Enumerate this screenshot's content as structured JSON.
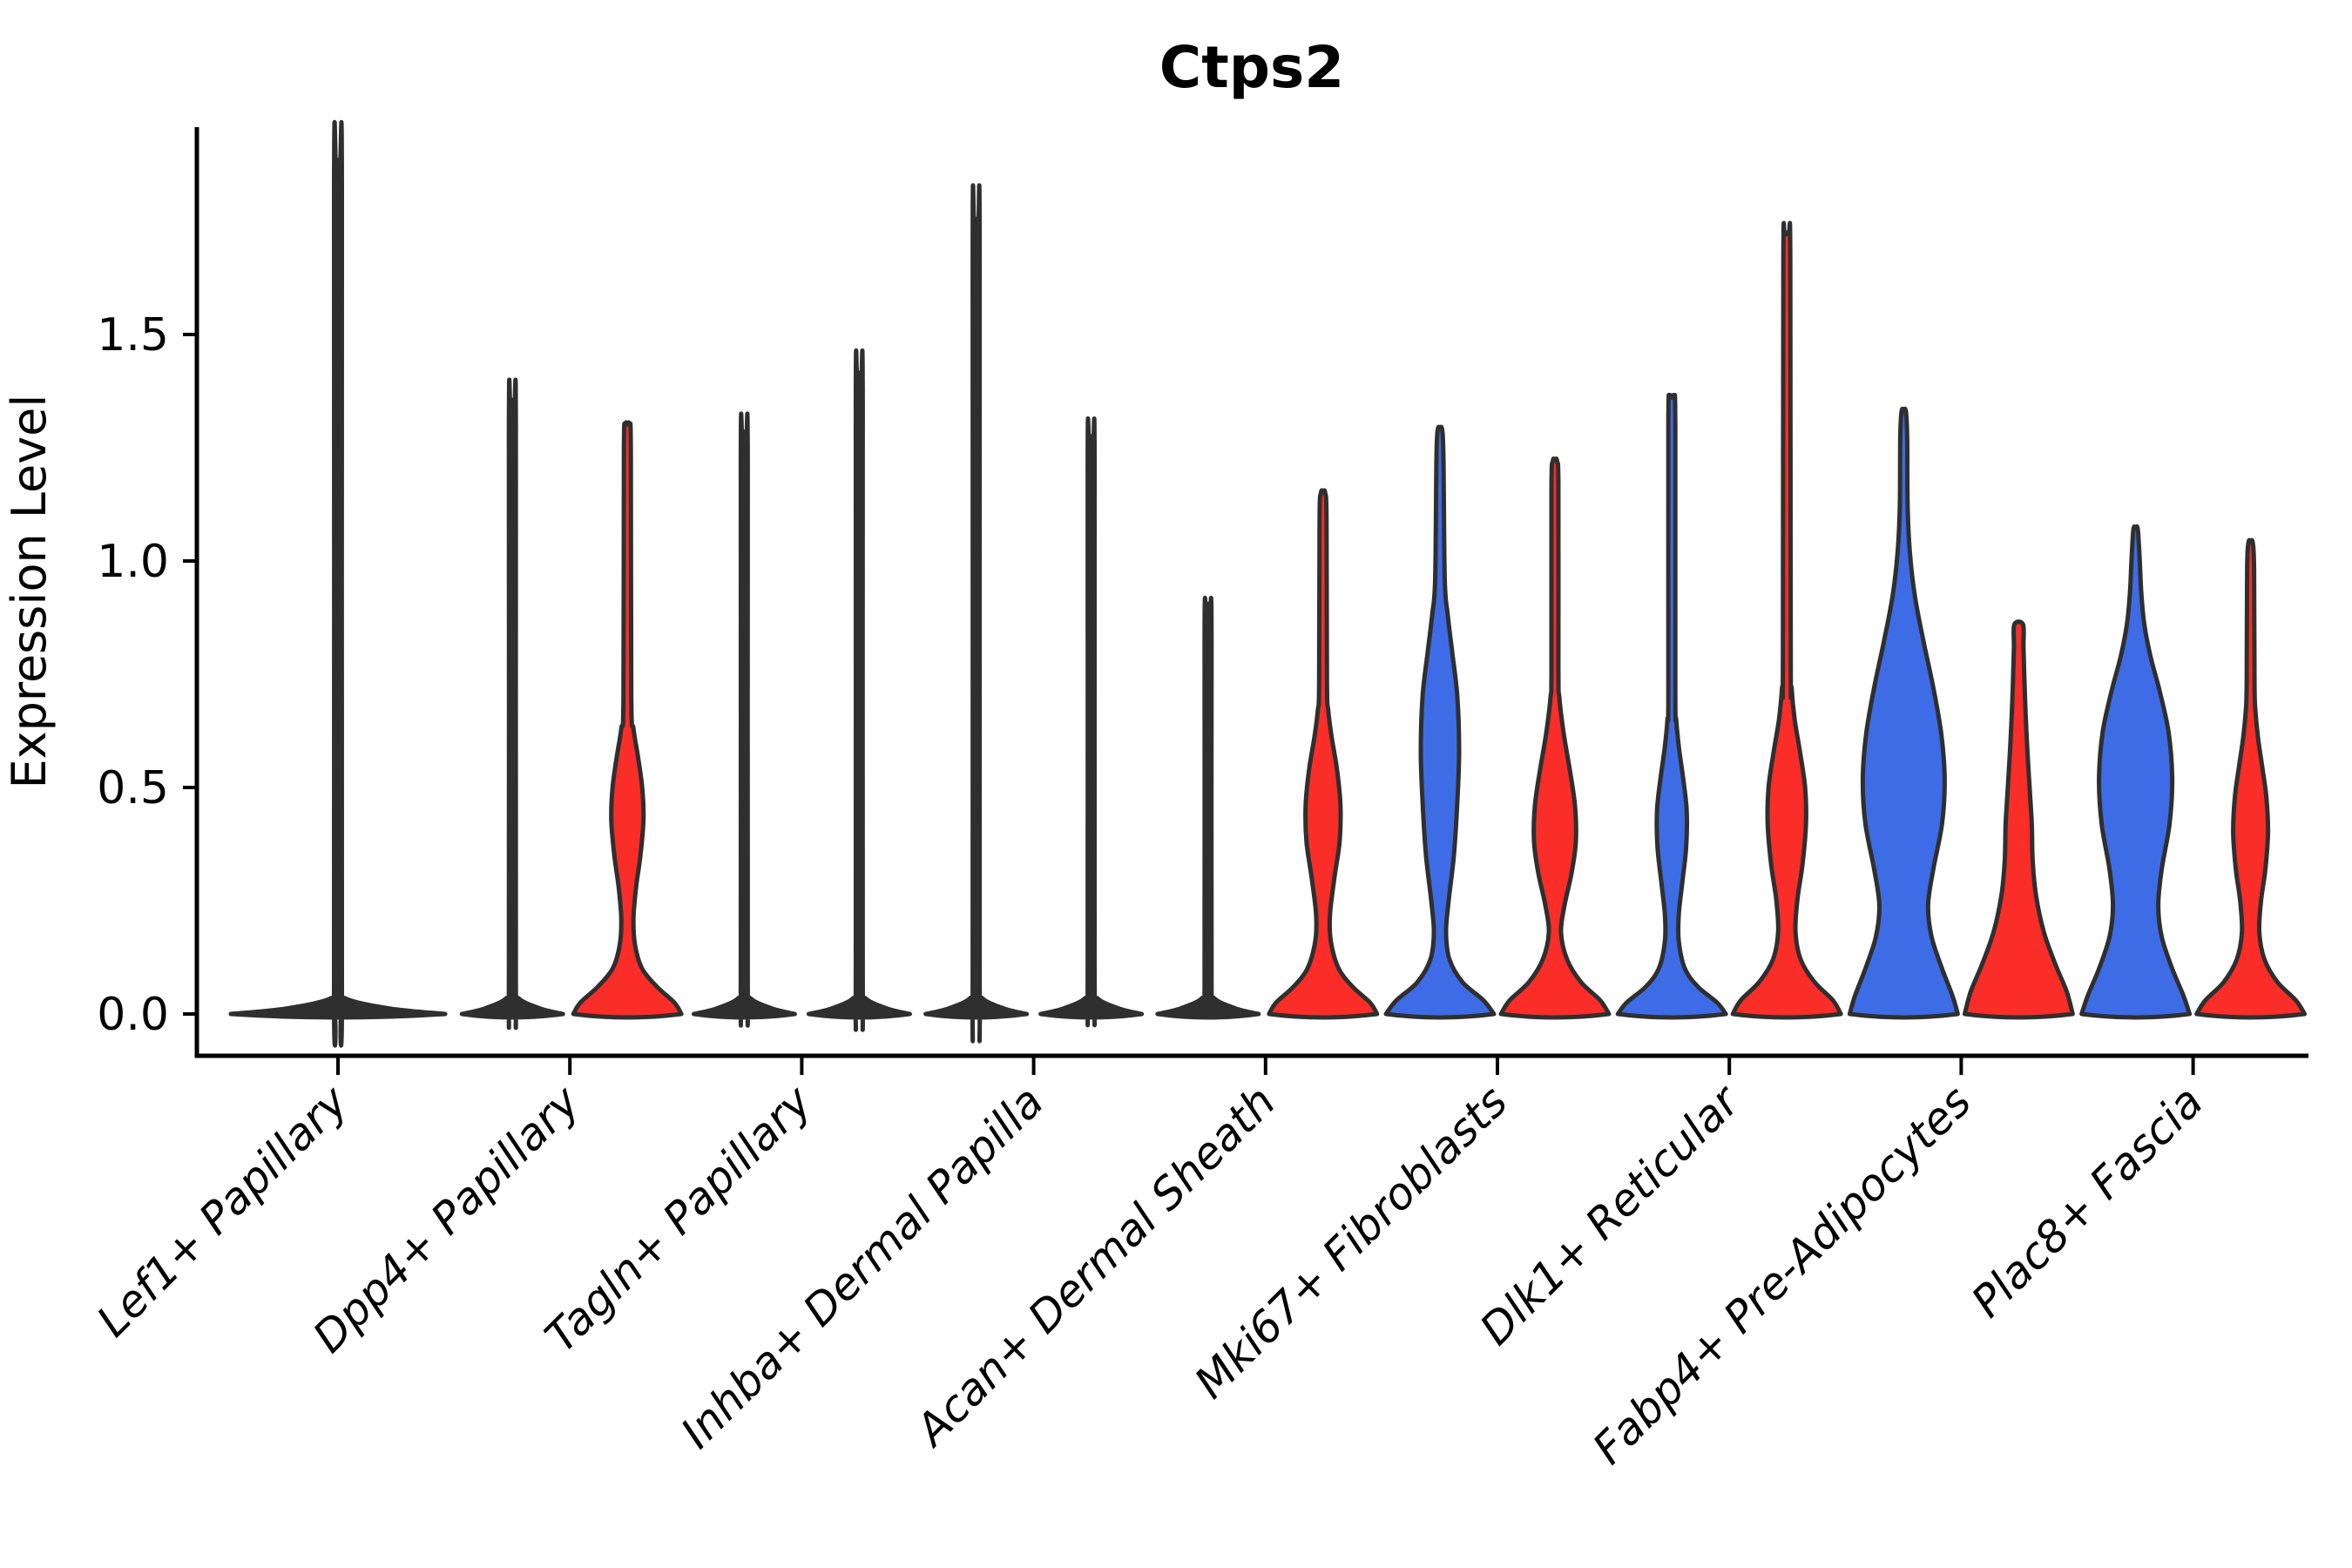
{
  "window": {
    "background": "#ffffff"
  },
  "chart_data": {
    "type": "violin",
    "title": "Ctps2",
    "ylabel": "Expression Level",
    "xlabel": "",
    "yticks": [
      "0.0",
      "0.5",
      "1.0",
      "1.5"
    ],
    "ytick_values": [
      0,
      0.5,
      1.0,
      1.5
    ],
    "ylim": [
      -0.09,
      1.96
    ],
    "grid": false,
    "legend": "none",
    "x_tick_label_rotation_deg": 45,
    "x_tick_label_style": "italic",
    "palette": {
      "left_group_fill": "#3e6ce6",
      "right_group_fill": "#fa2d28",
      "outline": "#2f2f2f",
      "flat_violin_fill": "#2f2f2f",
      "axis_color": "#000000"
    },
    "categories": [
      "Lef1+ Papillary",
      "Dpp4+ Papillary",
      "Tagln+ Papillary",
      "Inhba+ Dermal Papilla",
      "Acan+ Dermal Sheath",
      "Mki67+ Fibroblasts",
      "Dlk1+ Reticular",
      "Fabp4+ Pre-Adipocytes",
      "Plac8+ Fascia"
    ],
    "violins": [
      {
        "category": "Lef1+ Papillary",
        "items": [
          {
            "side": "center",
            "group": "single",
            "fill": "#2f2f2f",
            "max_expression": 1.88,
            "tip": "point",
            "profile": [
              [
                0,
                123
              ],
              [
                0.012,
                60
              ],
              [
                0.035,
                8
              ],
              [
                0.07,
                4.5
              ],
              [
                1.82,
                4.5
              ],
              [
                1.88,
                2.5
              ]
            ]
          }
        ]
      },
      {
        "category": "Dpp4+ Papillary",
        "items": [
          {
            "side": "left",
            "group": "blue",
            "fill": "#2f2f2f",
            "max_expression": 1.35,
            "tip": "point",
            "profile": [
              [
                0,
                58
              ],
              [
                0.012,
                32
              ],
              [
                0.035,
                7
              ],
              [
                0.07,
                4
              ],
              [
                1.29,
                4
              ],
              [
                1.35,
                2.5
              ]
            ]
          },
          {
            "side": "right",
            "group": "red",
            "fill": "#fa2d28",
            "max_expression": 1.3,
            "tip": "point",
            "profile": [
              [
                0,
                62
              ],
              [
                0.025,
                54
              ],
              [
                0.06,
                34
              ],
              [
                0.1,
                17
              ],
              [
                0.15,
                9
              ],
              [
                0.21,
                7
              ],
              [
                0.28,
                10
              ],
              [
                0.35,
                15
              ],
              [
                0.43,
                18.5
              ],
              [
                0.5,
                17
              ],
              [
                0.57,
                12
              ],
              [
                0.63,
                7
              ],
              [
                0.7,
                4.5
              ],
              [
                1.24,
                4
              ],
              [
                1.3,
                2.5
              ]
            ]
          }
        ]
      },
      {
        "category": "Tagln+ Papillary",
        "items": [
          {
            "side": "left",
            "group": "blue",
            "fill": "#2f2f2f",
            "max_expression": 1.28,
            "tip": "point",
            "profile": [
              [
                0,
                58
              ],
              [
                0.012,
                32
              ],
              [
                0.035,
                7
              ],
              [
                0.07,
                4
              ],
              [
                1.22,
                4
              ],
              [
                1.28,
                2.5
              ]
            ]
          },
          {
            "side": "right",
            "group": "red",
            "fill": "#2f2f2f",
            "max_expression": 1.41,
            "tip": "point",
            "profile": [
              [
                0,
                58
              ],
              [
                0.012,
                32
              ],
              [
                0.035,
                7
              ],
              [
                0.07,
                4
              ],
              [
                1.35,
                4
              ],
              [
                1.41,
                2.5
              ]
            ]
          }
        ]
      },
      {
        "category": "Inhba+ Dermal Papilla",
        "items": [
          {
            "side": "left",
            "group": "blue",
            "fill": "#2f2f2f",
            "max_expression": 1.75,
            "tip": "point",
            "profile": [
              [
                0,
                58
              ],
              [
                0.012,
                32
              ],
              [
                0.035,
                7
              ],
              [
                0.07,
                4
              ],
              [
                1.69,
                4
              ],
              [
                1.75,
                2.5
              ]
            ]
          },
          {
            "side": "right",
            "group": "red",
            "fill": "#2f2f2f",
            "max_expression": 1.27,
            "tip": "point",
            "profile": [
              [
                0,
                58
              ],
              [
                0.012,
                32
              ],
              [
                0.035,
                7
              ],
              [
                0.07,
                4
              ],
              [
                1.21,
                4
              ],
              [
                1.27,
                2.5
              ]
            ]
          }
        ]
      },
      {
        "category": "Acan+ Dermal Sheath",
        "items": [
          {
            "side": "left",
            "group": "blue",
            "fill": "#2f2f2f",
            "max_expression": 0.9,
            "tip": "point",
            "profile": [
              [
                0,
                58
              ],
              [
                0.012,
                32
              ],
              [
                0.035,
                7
              ],
              [
                0.07,
                4
              ],
              [
                0.84,
                4
              ],
              [
                0.9,
                2.5
              ]
            ]
          },
          {
            "side": "right",
            "group": "red",
            "fill": "#fa2d28",
            "max_expression": 1.15,
            "tip": "point",
            "profile": [
              [
                0,
                62
              ],
              [
                0.025,
                54
              ],
              [
                0.06,
                34
              ],
              [
                0.1,
                18
              ],
              [
                0.16,
                9
              ],
              [
                0.22,
                8
              ],
              [
                0.3,
                13
              ],
              [
                0.38,
                19
              ],
              [
                0.46,
                20
              ],
              [
                0.54,
                16
              ],
              [
                0.61,
                10
              ],
              [
                0.67,
                6
              ],
              [
                0.73,
                4.5
              ],
              [
                1.09,
                4
              ],
              [
                1.15,
                2.5
              ]
            ]
          }
        ]
      },
      {
        "category": "Mki67+ Fibroblasts",
        "items": [
          {
            "side": "left",
            "group": "blue",
            "fill": "#3e6ce6",
            "max_expression": 1.29,
            "tip": "point",
            "profile": [
              [
                0,
                62
              ],
              [
                0.03,
                50
              ],
              [
                0.07,
                26
              ],
              [
                0.12,
                11
              ],
              [
                0.18,
                7
              ],
              [
                0.25,
                10
              ],
              [
                0.35,
                16
              ],
              [
                0.47,
                20
              ],
              [
                0.58,
                22
              ],
              [
                0.7,
                20
              ],
              [
                0.8,
                14
              ],
              [
                0.88,
                9
              ],
              [
                0.96,
                5.5
              ],
              [
                1.23,
                4
              ],
              [
                1.29,
                2.5
              ]
            ]
          },
          {
            "side": "right",
            "group": "red",
            "fill": "#fa2d28",
            "max_expression": 1.22,
            "tip": "point",
            "profile": [
              [
                0,
                62
              ],
              [
                0.03,
                52
              ],
              [
                0.07,
                30
              ],
              [
                0.12,
                14
              ],
              [
                0.18,
                7
              ],
              [
                0.24,
                11
              ],
              [
                0.31,
                19
              ],
              [
                0.38,
                24
              ],
              [
                0.46,
                23
              ],
              [
                0.54,
                17
              ],
              [
                0.62,
                10
              ],
              [
                0.7,
                5
              ],
              [
                0.76,
                4
              ],
              [
                1.16,
                4
              ],
              [
                1.22,
                2.5
              ]
            ]
          }
        ]
      },
      {
        "category": "Dlk1+ Reticular",
        "items": [
          {
            "side": "left",
            "group": "blue",
            "fill": "#3e6ce6",
            "max_expression": 1.36,
            "tip": "point",
            "profile": [
              [
                0,
                62
              ],
              [
                0.025,
                52
              ],
              [
                0.06,
                30
              ],
              [
                0.1,
                15
              ],
              [
                0.16,
                8
              ],
              [
                0.22,
                8
              ],
              [
                0.29,
                12
              ],
              [
                0.37,
                16.5
              ],
              [
                0.45,
                17
              ],
              [
                0.52,
                13
              ],
              [
                0.59,
                8
              ],
              [
                0.65,
                5
              ],
              [
                0.71,
                4
              ],
              [
                1.3,
                4
              ],
              [
                1.36,
                2.5
              ]
            ]
          },
          {
            "side": "right",
            "group": "red",
            "fill": "#fa2d28",
            "max_expression": 1.72,
            "tip": "point",
            "profile": [
              [
                0,
                62
              ],
              [
                0.03,
                53
              ],
              [
                0.07,
                32
              ],
              [
                0.12,
                16
              ],
              [
                0.18,
                10
              ],
              [
                0.25,
                12
              ],
              [
                0.33,
                18
              ],
              [
                0.42,
                22
              ],
              [
                0.5,
                21
              ],
              [
                0.58,
                15
              ],
              [
                0.65,
                9
              ],
              [
                0.72,
                5.5
              ],
              [
                0.78,
                4.5
              ],
              [
                1.66,
                4
              ],
              [
                1.72,
                2.5
              ]
            ]
          }
        ]
      },
      {
        "category": "Fabp4+ Pre-Adipocytes",
        "items": [
          {
            "side": "left",
            "group": "blue",
            "fill": "#3e6ce6",
            "max_expression": 1.33,
            "tip": "point",
            "profile": [
              [
                0,
                62
              ],
              [
                0.04,
                56
              ],
              [
                0.1,
                44
              ],
              [
                0.17,
                32
              ],
              [
                0.24,
                28
              ],
              [
                0.32,
                34
              ],
              [
                0.42,
                44
              ],
              [
                0.52,
                47
              ],
              [
                0.62,
                43
              ],
              [
                0.72,
                34
              ],
              [
                0.82,
                23
              ],
              [
                0.92,
                13
              ],
              [
                1.02,
                7
              ],
              [
                1.12,
                4.5
              ],
              [
                1.27,
                4
              ],
              [
                1.33,
                2.5
              ]
            ]
          },
          {
            "side": "right",
            "group": "red",
            "fill": "#fa2d28",
            "max_expression": 0.86,
            "tip": "flat",
            "profile": [
              [
                0,
                62
              ],
              [
                0.05,
                55
              ],
              [
                0.11,
                42
              ],
              [
                0.18,
                29
              ],
              [
                0.26,
                20
              ],
              [
                0.34,
                16
              ],
              [
                0.42,
                15
              ],
              [
                0.5,
                12.5
              ],
              [
                0.58,
                10
              ],
              [
                0.66,
                8
              ],
              [
                0.74,
                6.5
              ],
              [
                0.81,
                5.5
              ],
              [
                0.86,
                5
              ]
            ]
          }
        ]
      },
      {
        "category": "Plac8+ Fascia",
        "items": [
          {
            "side": "left",
            "group": "blue",
            "fill": "#3e6ce6",
            "max_expression": 1.07,
            "tip": "point",
            "profile": [
              [
                0,
                62
              ],
              [
                0.04,
                55
              ],
              [
                0.1,
                42
              ],
              [
                0.17,
                30
              ],
              [
                0.24,
                26
              ],
              [
                0.32,
                30
              ],
              [
                0.42,
                39
              ],
              [
                0.52,
                42
              ],
              [
                0.62,
                38
              ],
              [
                0.71,
                28
              ],
              [
                0.79,
                17
              ],
              [
                0.86,
                10
              ],
              [
                0.93,
                6.5
              ],
              [
                1.01,
                4.5
              ],
              [
                1.07,
                2.5
              ]
            ]
          },
          {
            "side": "right",
            "group": "red",
            "fill": "#fa2d28",
            "max_expression": 1.04,
            "tip": "point",
            "profile": [
              [
                0,
                62
              ],
              [
                0.03,
                52
              ],
              [
                0.07,
                31
              ],
              [
                0.12,
                16
              ],
              [
                0.18,
                10
              ],
              [
                0.25,
                12
              ],
              [
                0.32,
                17
              ],
              [
                0.4,
                20
              ],
              [
                0.48,
                18
              ],
              [
                0.55,
                13
              ],
              [
                0.61,
                8.5
              ],
              [
                0.67,
                5.5
              ],
              [
                0.73,
                4.5
              ],
              [
                0.98,
                4
              ],
              [
                1.04,
                2.5
              ]
            ]
          }
        ]
      }
    ]
  }
}
